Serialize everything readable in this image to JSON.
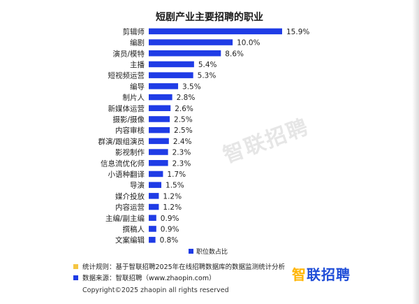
{
  "chart_data": {
    "type": "bar",
    "orientation": "horizontal",
    "title": "短剧产业主要招聘的职业",
    "categories": [
      "剪辑师",
      "编剧",
      "演员/模特",
      "主播",
      "短视频运营",
      "编导",
      "制片人",
      "新媒体运营",
      "摄影/摄像",
      "内容审核",
      "群演/跟组演员",
      "影视制作",
      "信息流优化师",
      "小语种翻译",
      "导演",
      "媒介投放",
      "内容运营",
      "主编/副主编",
      "撰稿人",
      "文案编辑"
    ],
    "series": [
      {
        "name": "职位数占比",
        "values": [
          15.9,
          10.0,
          8.6,
          5.4,
          5.3,
          3.5,
          2.8,
          2.6,
          2.5,
          2.5,
          2.4,
          2.3,
          2.3,
          1.7,
          1.5,
          1.2,
          1.2,
          0.9,
          0.9,
          0.8
        ],
        "labels": [
          "15.9%",
          "10.0%",
          "8.6%",
          "5.4%",
          "5.3%",
          "3.5%",
          "2.8%",
          "2.6%",
          "2.5%",
          "2.5%",
          "2.4%",
          "2.3%",
          "2.3%",
          "1.7%",
          "1.5%",
          "1.2%",
          "1.2%",
          "0.9%",
          "0.9%",
          "0.8%"
        ]
      }
    ],
    "unit": "%",
    "xlim": [
      0,
      15.9
    ],
    "legend_position": "bottom-center",
    "grid": false,
    "bar_color": "#1f3ce6"
  },
  "watermark": "智联招聘",
  "notes": [
    {
      "text": "统计规则：基于智联招聘2025年在线招聘数据库的数据监测统计分析",
      "color": "#f5c542"
    },
    {
      "text": "数据来源：智联招聘（www.zhaopin.com）",
      "color": "#1f3ce6"
    }
  ],
  "brand": {
    "first": "智",
    "rest": "联招聘"
  },
  "copyright": "Copyright©2025 zhaopin all rights reserved"
}
